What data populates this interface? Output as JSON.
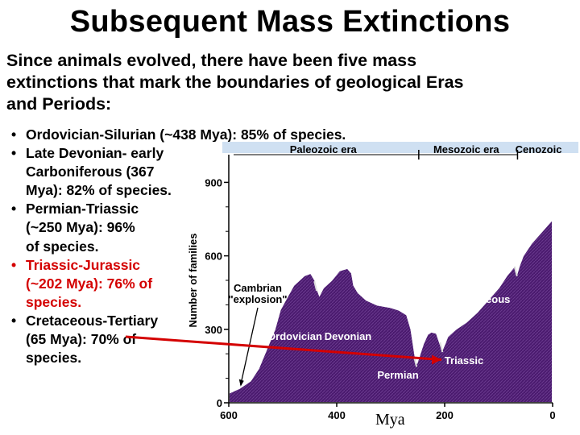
{
  "title": "Subsequent Mass Extinctions",
  "intro_lines": [
    "Since animals evolved, there have been five mass",
    "extinctions that mark the boundaries of geological Eras",
    "and Periods:"
  ],
  "bullet_lines": [
    {
      "text": "Ordovician-Silurian (~438 Mya): 85% of species.",
      "bullet": true,
      "red": false
    },
    {
      "text": "Late Devonian- early",
      "bullet": true,
      "red": false
    },
    {
      "text": "Carboniferous (367",
      "bullet": false,
      "red": false
    },
    {
      "text": "Mya): 82% of species.",
      "bullet": false,
      "red": false
    },
    {
      "text": "Permian-Triassic",
      "bullet": true,
      "red": false
    },
    {
      "text": "(~250 Mya): 96%",
      "bullet": false,
      "red": false
    },
    {
      "text": "of species.",
      "bullet": false,
      "red": false
    },
    {
      "text": "Triassic-Jurassic",
      "bullet": true,
      "red": true
    },
    {
      "text": "(~202 Mya): 76% of",
      "bullet": false,
      "red": true
    },
    {
      "text": "species.",
      "bullet": false,
      "red": true
    },
    {
      "text": "Cretaceous-Tertiary",
      "bullet": true,
      "red": false
    },
    {
      "text": "(65 Mya): 70% of",
      "bullet": false,
      "red": false
    },
    {
      "text": "species.",
      "bullet": false,
      "red": false
    }
  ],
  "bullet_char": "•",
  "mya_label": "Mya",
  "colors": {
    "fill": "#4a1a6e",
    "red": "#d40000",
    "band": "#cfe0f2"
  },
  "chart_data": {
    "type": "area",
    "ylabel": "Number of families",
    "xlabel": "",
    "x_ticks": [
      "600",
      "400",
      "200",
      "0"
    ],
    "y_ticks": [
      "0",
      "300",
      "600",
      "900"
    ],
    "xlim": [
      600,
      0
    ],
    "ylim": [
      0,
      1000
    ],
    "eras": [
      "Paleozoic era",
      "Mesozoic era",
      "Cenozoic"
    ],
    "annotations": [
      "Cambrian",
      "\"explosion\"",
      "Ordovician",
      "Devonian",
      "Permian",
      "Triassic",
      "Cretaceous"
    ],
    "series": [
      {
        "x": [
          600,
          580,
          560,
          545,
          530,
          515,
          505,
          495,
          480,
          470,
          460,
          448,
          440,
          437,
          432,
          425,
          410,
          395,
          380,
          372,
          368,
          360,
          345,
          325,
          300,
          285,
          270,
          262,
          255,
          252,
          246,
          240,
          232,
          225,
          215,
          208,
          204,
          200,
          195,
          180,
          160,
          140,
          120,
          100,
          85,
          70,
          66,
          62,
          55,
          40,
          20,
          0
        ],
        "values": [
          40,
          60,
          90,
          140,
          220,
          300,
          380,
          420,
          480,
          500,
          520,
          530,
          500,
          470,
          440,
          470,
          500,
          540,
          550,
          530,
          480,
          450,
          420,
          400,
          390,
          380,
          360,
          300,
          200,
          160,
          200,
          240,
          280,
          290,
          285,
          240,
          220,
          240,
          270,
          300,
          330,
          370,
          420,
          470,
          520,
          560,
          530,
          560,
          600,
          650,
          700,
          750
        ]
      }
    ]
  }
}
